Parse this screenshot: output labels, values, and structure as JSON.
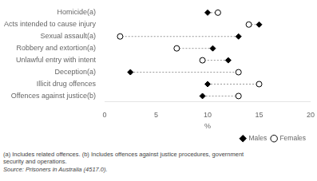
{
  "chart_data": {
    "type": "dumbbell",
    "categories": [
      "Homicide(a)",
      "Acts intended to cause injury",
      "Sexual assault(a)",
      "Robbery and extortion(a)",
      "Unlawful entry with intent",
      "Deception(a)",
      "Illicit drug offences",
      "Offences against justice(b)"
    ],
    "series": [
      {
        "name": "Males",
        "color": "black",
        "marker": "diamond",
        "values": [
          10.0,
          15.0,
          13.0,
          10.5,
          12.0,
          2.5,
          10.0,
          9.5
        ]
      },
      {
        "name": "Females",
        "color": "white",
        "marker": "circle",
        "values": [
          11.0,
          14.0,
          1.5,
          7.0,
          9.5,
          13.0,
          15.0,
          13.0
        ]
      }
    ],
    "color": "#999999",
    "line_style": "dashed",
    "xlabel": "%",
    "xlim": [
      0,
      20
    ],
    "xticks": [
      0,
      5,
      10,
      15,
      20
    ],
    "grid": false,
    "legend": "lower right",
    "annotations": [
      "(a) Includes related offences.  (b) Includes offences against justice procedures, government",
      "security and operations.",
      "Source: Prisoners in Australia  (4517.0)."
    ]
  }
}
